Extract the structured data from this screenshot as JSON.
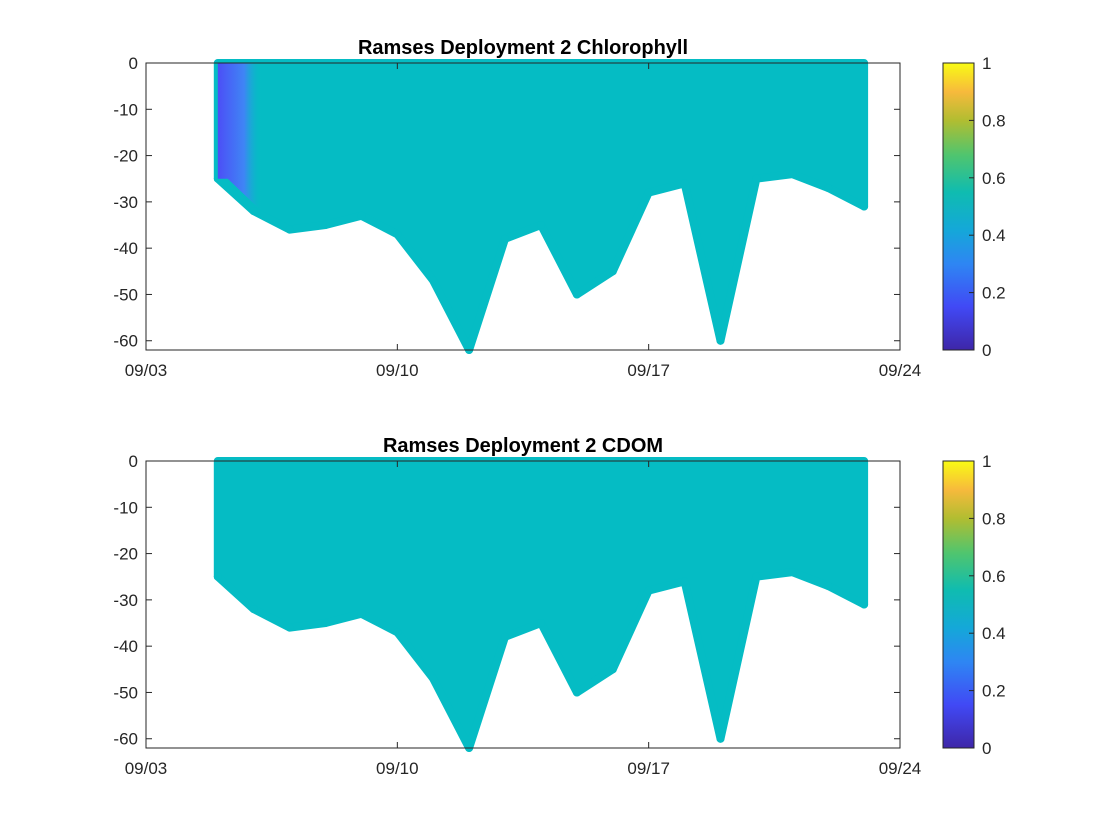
{
  "chart_data": [
    {
      "type": "scatter",
      "title": "Ramses Deployment 2 Chlorophyll",
      "xlabel": "",
      "ylabel": "",
      "x_tick_labels": [
        "09/03",
        "09/10",
        "09/17",
        "09/24"
      ],
      "xlim": [
        "09/03",
        "09/24"
      ],
      "ylim": [
        -62,
        0
      ],
      "yticks": [
        0,
        -10,
        -20,
        -30,
        -40,
        -50,
        -60
      ],
      "colorbar": {
        "min": 0,
        "max": 1,
        "ticks": [
          0,
          0.2,
          0.4,
          0.6,
          0.8,
          1
        ],
        "colormap": "parula"
      },
      "grid": false,
      "series": [
        {
          "marker_color": "#05bcc4",
          "early_color_gradient": [
            "#4c4ff6",
            "#3f85f5"
          ],
          "value": 0.5,
          "early_value_range": [
            0.15,
            0.3
          ],
          "depth_envelope": {
            "date": [
              "09/05",
              "09/06",
              "09/07",
              "09/08",
              "09/09",
              "09/10",
              "09/11",
              "09/12",
              "09/13",
              "09/14",
              "09/15",
              "09/16",
              "09/17",
              "09/18",
              "09/19",
              "09/20",
              "09/21",
              "09/22",
              "09/23"
            ],
            "min_depth": [
              -25,
              -32,
              -36,
              -35,
              -33,
              -37,
              -47,
              -62,
              -38,
              -35,
              -50,
              -45,
              -28,
              -26,
              -60,
              -25,
              -24,
              -27,
              -31
            ]
          }
        }
      ]
    },
    {
      "type": "scatter",
      "title": "Ramses Deployment 2 CDOM",
      "xlabel": "",
      "ylabel": "",
      "x_tick_labels": [
        "09/03",
        "09/10",
        "09/17",
        "09/24"
      ],
      "xlim": [
        "09/03",
        "09/24"
      ],
      "ylim": [
        -62,
        0
      ],
      "yticks": [
        0,
        -10,
        -20,
        -30,
        -40,
        -50,
        -60
      ],
      "colorbar": {
        "min": 0,
        "max": 1,
        "ticks": [
          0,
          0.2,
          0.4,
          0.6,
          0.8,
          1
        ],
        "colormap": "parula"
      },
      "grid": false,
      "series": [
        {
          "marker_color": "#05bcc4",
          "value": 0.5,
          "depth_envelope": {
            "date": [
              "09/05",
              "09/06",
              "09/07",
              "09/08",
              "09/09",
              "09/10",
              "09/11",
              "09/12",
              "09/13",
              "09/14",
              "09/15",
              "09/16",
              "09/17",
              "09/18",
              "09/19",
              "09/20",
              "09/21",
              "09/22",
              "09/23"
            ],
            "min_depth": [
              -25,
              -32,
              -36,
              -35,
              -33,
              -37,
              -47,
              -62,
              -38,
              -35,
              -50,
              -45,
              -28,
              -26,
              -60,
              -25,
              -24,
              -27,
              -31
            ]
          }
        }
      ]
    }
  ]
}
